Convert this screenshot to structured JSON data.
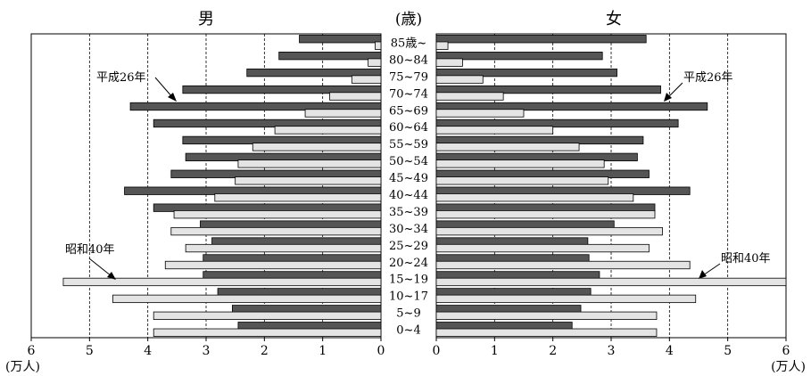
{
  "chart_data": {
    "type": "bar",
    "subtype": "population-pyramid",
    "title_left": "男",
    "title_center": "(歳)",
    "title_right": "女",
    "unit_left": "(万人)",
    "unit_right": "(万人)",
    "categories": [
      "85歳~",
      "80~84",
      "75~79",
      "70~74",
      "65~69",
      "60~64",
      "55~59",
      "50~54",
      "45~49",
      "40~44",
      "35~39",
      "30~34",
      "25~29",
      "20~24",
      "15~19",
      "10~17",
      "5~9",
      "0~4"
    ],
    "xlim": [
      0,
      6
    ],
    "xticks": [
      "6",
      "5",
      "4",
      "3",
      "2",
      "1",
      "0"
    ],
    "xticks_right": [
      "0",
      "1",
      "2",
      "3",
      "4",
      "5",
      "6"
    ],
    "grid": "dashed vertical at 1-5",
    "series": [
      {
        "name": "平成26年",
        "color": "#555555",
        "male": [
          1.4,
          1.75,
          2.3,
          3.4,
          4.3,
          3.9,
          3.4,
          3.35,
          3.6,
          4.4,
          3.9,
          3.1,
          2.9,
          3.05,
          3.05,
          2.8,
          2.55,
          2.45
        ],
        "female": [
          3.6,
          2.85,
          3.1,
          3.85,
          4.65,
          4.15,
          3.55,
          3.45,
          3.65,
          4.35,
          3.75,
          3.05,
          2.6,
          2.62,
          2.8,
          2.65,
          2.48,
          2.33
        ]
      },
      {
        "name": "昭和40年",
        "color": "#e4e4e4",
        "male": [
          0.1,
          0.22,
          0.5,
          0.88,
          1.3,
          1.82,
          2.2,
          2.45,
          2.5,
          2.85,
          3.55,
          3.6,
          3.35,
          3.7,
          5.45,
          4.6,
          3.9,
          3.9
        ],
        "female": [
          0.2,
          0.45,
          0.8,
          1.15,
          1.5,
          2.0,
          2.45,
          2.88,
          2.95,
          3.38,
          3.75,
          3.88,
          3.65,
          4.35,
          6.0,
          4.45,
          3.78,
          3.78
        ]
      }
    ],
    "annotations": [
      {
        "text": "平成26年",
        "side": "left"
      },
      {
        "text": "平成26年",
        "side": "right"
      },
      {
        "text": "昭和40年",
        "side": "left"
      },
      {
        "text": "昭和40年",
        "side": "right"
      }
    ]
  }
}
